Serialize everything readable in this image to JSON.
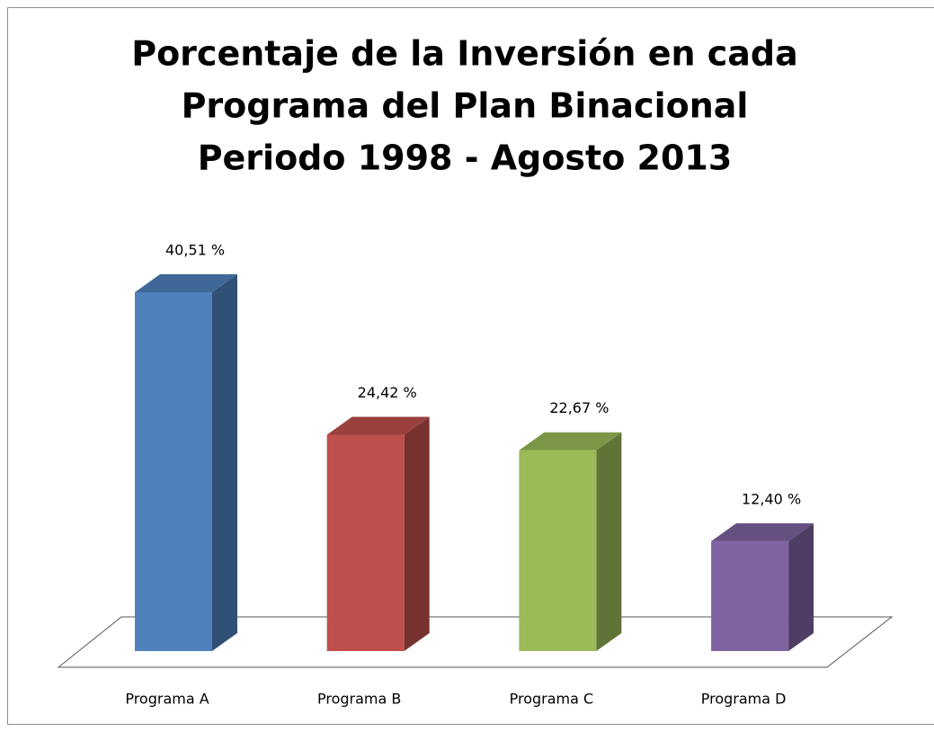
{
  "chart_data": {
    "type": "bar3d",
    "title": [
      "Porcentaje de la Inversión en cada",
      "Programa del Plan Binacional",
      "Periodo 1998 - Agosto 2013"
    ],
    "categories": [
      "Programa A",
      "Programa B",
      "Programa C",
      "Programa D"
    ],
    "values": [
      40.51,
      24.42,
      22.67,
      12.4
    ],
    "value_labels": [
      "40,51 %",
      "24,42 %",
      "22,67 %",
      "12,40 %"
    ],
    "colors": [
      "#4f81bd",
      "#c0504d",
      "#9bbb59",
      "#8064a2"
    ]
  }
}
